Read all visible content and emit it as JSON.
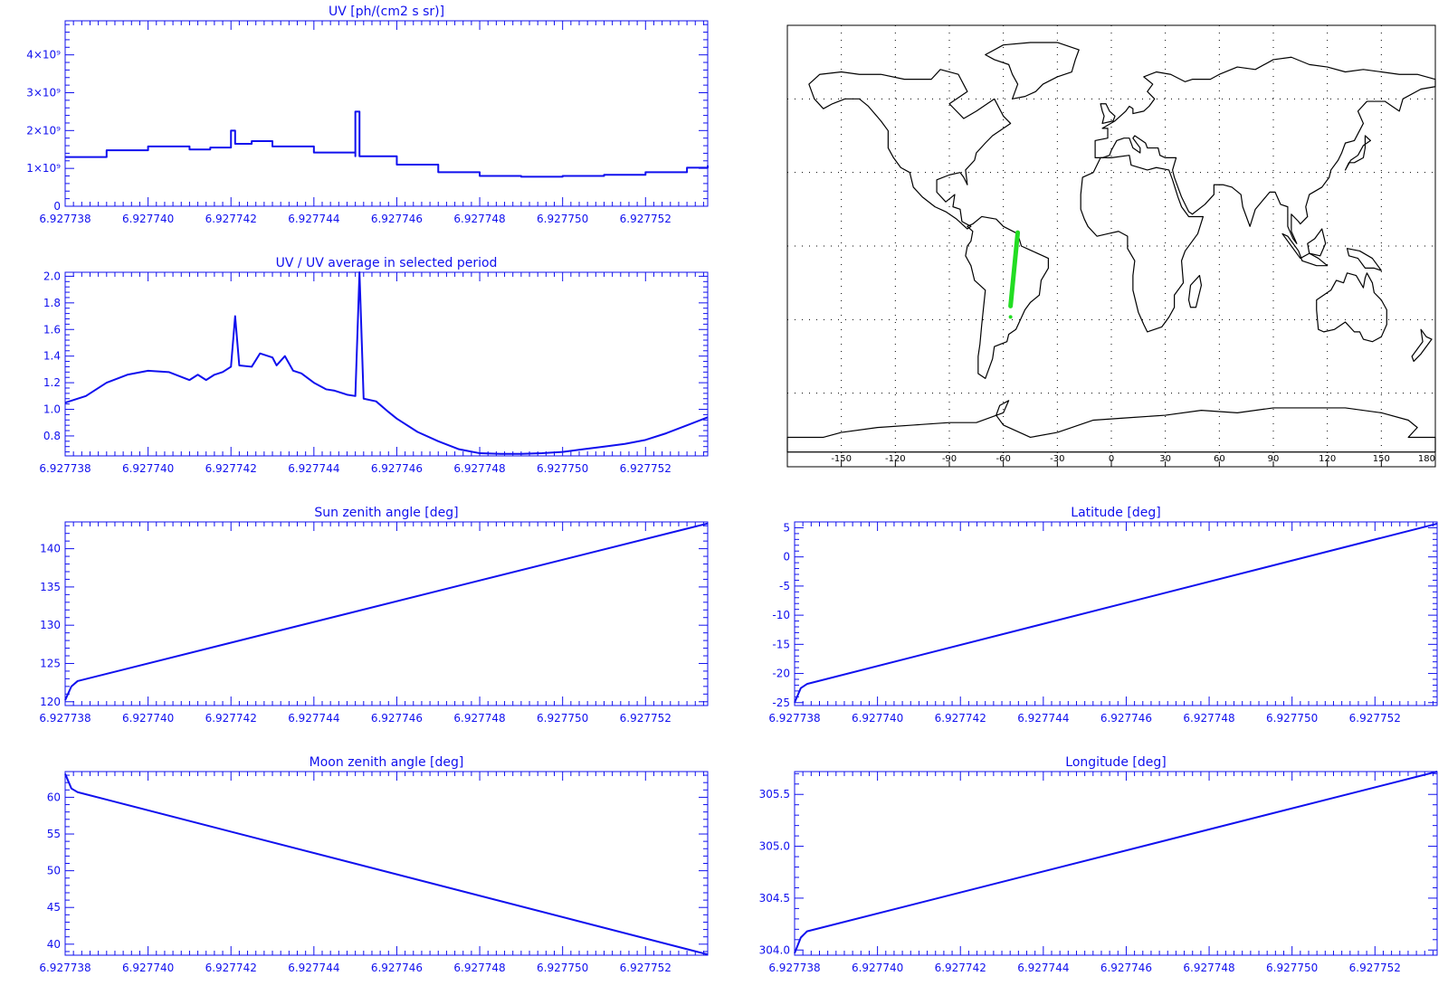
{
  "colors": {
    "axis": "#1010ee",
    "line": "#1010ee",
    "map_border": "#000000",
    "track": "#22dd22",
    "grid": "#000000"
  },
  "x_tick_labels": [
    "6.927738",
    "6.927740",
    "6.927742",
    "6.927744",
    "6.927746",
    "6.927748",
    "6.927750",
    "6.927752"
  ],
  "chart_data": [
    {
      "type": "line",
      "step": true,
      "title": "UV [ph/(cm2 s sr)]",
      "xlim": [
        6.927738,
        6.9277535
      ],
      "ylim": [
        0,
        4900000000
      ],
      "yticks": [
        0,
        1000000000,
        2000000000,
        3000000000,
        4000000000
      ],
      "ytick_labels": [
        "0",
        "1×10⁹",
        "2×10⁹",
        "3×10⁹",
        "4×10⁹"
      ],
      "x": [
        6.927738,
        6.927739,
        6.92774,
        6.927741,
        6.927741,
        6.9277415,
        6.927742,
        6.927742,
        6.9277421,
        6.9277421,
        6.9277425,
        6.927743,
        6.927744,
        6.927745,
        6.927745,
        6.9277451,
        6.9277451,
        6.927746,
        6.927747,
        6.927748,
        6.927749,
        6.92775,
        6.927751,
        6.927752,
        6.927753,
        6.9277535
      ],
      "values": [
        1300000000,
        1480000000,
        1580000000,
        1540000000,
        1500000000,
        1550000000,
        1600000000,
        2000000000,
        2000000000,
        1650000000,
        1720000000,
        1580000000,
        1420000000,
        1320000000,
        2500000000,
        2500000000,
        1320000000,
        1100000000,
        900000000,
        800000000,
        780000000,
        800000000,
        830000000,
        900000000,
        1020000000,
        1080000000
      ]
    },
    {
      "type": "line",
      "title": "UV / UV average in selected period",
      "xlim": [
        6.927738,
        6.9277535
      ],
      "ylim": [
        0.65,
        2.03
      ],
      "yticks": [
        0.8,
        1.0,
        1.2,
        1.4,
        1.6,
        1.8,
        2.0
      ],
      "ytick_labels": [
        "0.8",
        "1.0",
        "1.2",
        "1.4",
        "1.6",
        "1.8",
        "2.0"
      ],
      "x": [
        6.927738,
        6.9277385,
        6.927739,
        6.9277395,
        6.92774,
        6.9277405,
        6.927741,
        6.9277412,
        6.9277414,
        6.9277416,
        6.9277418,
        6.927742,
        6.9277421,
        6.9277422,
        6.9277425,
        6.9277427,
        6.927743,
        6.9277431,
        6.9277433,
        6.9277435,
        6.9277437,
        6.927744,
        6.9277443,
        6.9277445,
        6.9277448,
        6.927745,
        6.9277451,
        6.9277452,
        6.9277455,
        6.9277458,
        6.927746,
        6.9277465,
        6.927747,
        6.9277475,
        6.927748,
        6.9277485,
        6.927749,
        6.9277495,
        6.92775,
        6.9277505,
        6.927751,
        6.9277515,
        6.927752,
        6.9277525,
        6.927753,
        6.9277535
      ],
      "values": [
        1.05,
        1.1,
        1.2,
        1.26,
        1.29,
        1.28,
        1.22,
        1.26,
        1.22,
        1.26,
        1.28,
        1.32,
        1.7,
        1.33,
        1.32,
        1.42,
        1.39,
        1.33,
        1.4,
        1.29,
        1.27,
        1.2,
        1.15,
        1.14,
        1.11,
        1.1,
        2.03,
        1.08,
        1.06,
        0.98,
        0.93,
        0.83,
        0.76,
        0.7,
        0.67,
        0.665,
        0.665,
        0.67,
        0.68,
        0.7,
        0.72,
        0.74,
        0.77,
        0.82,
        0.88,
        0.94
      ]
    },
    {
      "type": "line",
      "title": "Sun zenith angle [deg]",
      "xlim": [
        6.927738,
        6.9277535
      ],
      "ylim": [
        119.5,
        143.5
      ],
      "yticks": [
        120,
        125,
        130,
        135,
        140
      ],
      "ytick_labels": [
        "120",
        "125",
        "130",
        "135",
        "140"
      ],
      "x": [
        6.927738,
        6.92773815,
        6.9277383,
        6.9277535
      ],
      "values": [
        120.2,
        122.0,
        122.7,
        143.3
      ]
    },
    {
      "type": "line",
      "title": "Latitude [deg]",
      "xlim": [
        6.927738,
        6.9277535
      ],
      "ylim": [
        -25.5,
        6
      ],
      "yticks": [
        -25,
        -20,
        -15,
        -10,
        -5,
        0,
        5
      ],
      "ytick_labels": [
        "-25",
        "-20",
        "-15",
        "-10",
        "-5",
        "0",
        "5"
      ],
      "x": [
        6.927738,
        6.92773815,
        6.9277383,
        6.9277535
      ],
      "values": [
        -25.0,
        -22.5,
        -21.8,
        5.7
      ]
    },
    {
      "type": "line",
      "title": "Moon zenith angle [deg]",
      "xlim": [
        6.927738,
        6.9277535
      ],
      "ylim": [
        38.5,
        63.5
      ],
      "yticks": [
        40,
        45,
        50,
        55,
        60
      ],
      "ytick_labels": [
        "40",
        "45",
        "50",
        "55",
        "60"
      ],
      "x": [
        6.927738,
        6.92773815,
        6.9277383,
        6.9277535
      ],
      "values": [
        63.2,
        61.2,
        60.7,
        38.6
      ]
    },
    {
      "type": "line",
      "title": "Longitude [deg]",
      "xlim": [
        6.927738,
        6.9277535
      ],
      "ylim": [
        303.95,
        305.72
      ],
      "yticks": [
        304.0,
        304.5,
        305.0,
        305.5
      ],
      "ytick_labels": [
        "304.0",
        "304.5",
        "305.0",
        "305.5"
      ],
      "x": [
        6.927738,
        6.92773815,
        6.9277383,
        6.9277535
      ],
      "values": [
        303.97,
        304.12,
        304.18,
        305.72
      ]
    }
  ],
  "map": {
    "projection": "cylindrical",
    "xlim": [
      -180,
      180
    ],
    "ylim": [
      -90,
      90
    ],
    "lon_ticks": [
      -150,
      -120,
      -90,
      -60,
      -30,
      0,
      30,
      60,
      90,
      120,
      150,
      180
    ],
    "lon_tick_labels": [
      "-150",
      "-120",
      "-90",
      "-60",
      "-30",
      "0",
      "30",
      "60",
      "90",
      "120",
      "150",
      "180"
    ],
    "grid": true,
    "track": {
      "lon": [
        -52,
        -56
      ],
      "lat": [
        5.5,
        -24.5
      ]
    }
  }
}
